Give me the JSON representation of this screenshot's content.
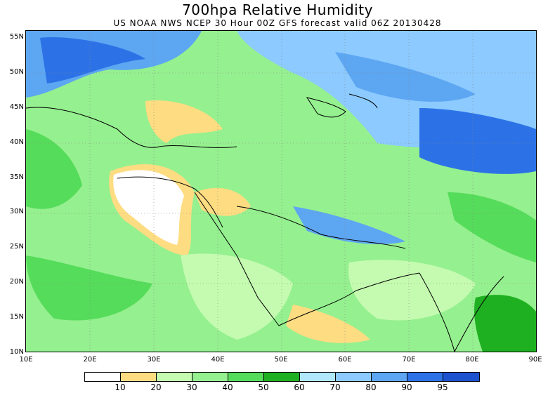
{
  "header": {
    "title": "700hpa Relative Humidity",
    "subtitle": "US NOAA NWS NCEP 30 Hour 00Z GFS forecast valid 06Z 20130428"
  },
  "axes": {
    "lat_labels": [
      "55N",
      "50N",
      "45N",
      "40N",
      "35N",
      "30N",
      "25N",
      "20N",
      "15N",
      "10N"
    ],
    "lon_labels": [
      "10E",
      "20E",
      "30E",
      "40E",
      "50E",
      "60E",
      "70E",
      "80E",
      "90E"
    ]
  },
  "colorbar": {
    "labels": [
      "10",
      "20",
      "30",
      "40",
      "50",
      "60",
      "70",
      "80",
      "90",
      "95"
    ],
    "colors": [
      "#ffffff",
      "#fddc82",
      "#c4fbb0",
      "#95f08f",
      "#55dc5a",
      "#1fb021",
      "#b1e8fb",
      "#8ccaff",
      "#5da6f2",
      "#2c72e6",
      "#1c52ce"
    ]
  },
  "map": {
    "lon_range": [
      10,
      90
    ],
    "lat_range": [
      10,
      56
    ],
    "background_color": "#95f08f"
  }
}
